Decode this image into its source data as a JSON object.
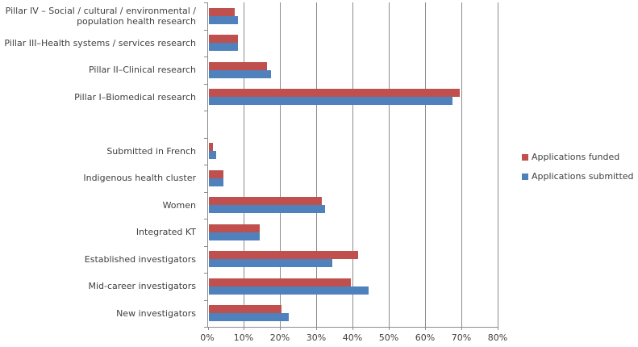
{
  "chart_data": {
    "type": "bar",
    "orientation": "horizontal",
    "title": "",
    "categories": [
      "Pillar IV – Social / cultural / environmental / population health research",
      "Pillar III–Health systems / services research",
      "Pillar II–Clinical research",
      "Pillar  I–Biomedical research",
      "",
      "Submitted in French",
      "Indigenous health cluster",
      "Women",
      "Integrated KT",
      "Established investigators",
      "Mid-career investigators",
      "New investigators"
    ],
    "series": [
      {
        "name": "Applications funded",
        "color": "#C0504D",
        "values": [
          7,
          8,
          16,
          69,
          null,
          1,
          4,
          31,
          14,
          41,
          39,
          20
        ]
      },
      {
        "name": "Applications submitted",
        "color": "#4F81BD",
        "values": [
          8,
          8,
          17,
          67,
          null,
          2,
          4,
          32,
          14,
          34,
          44,
          22
        ]
      }
    ],
    "x_axis": {
      "min": 0,
      "max": 80,
      "tick_step": 10,
      "ticks": [
        "0%",
        "10%",
        "20%",
        "30%",
        "40%",
        "50%",
        "60%",
        "70%",
        "80%"
      ]
    },
    "grid": "vertical-gridlines-on",
    "legend_position": "right",
    "value_unit": "%"
  },
  "colors": {
    "funded": "#C0504D",
    "submitted": "#4F81BD",
    "gridline": "#8c8c8c",
    "text": "#404040",
    "background": "#ffffff"
  }
}
